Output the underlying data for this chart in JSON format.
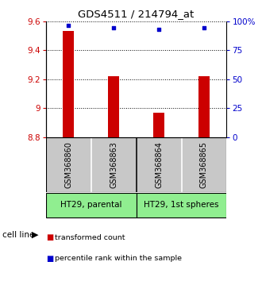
{
  "title": "GDS4511 / 214794_at",
  "samples": [
    "GSM368860",
    "GSM368863",
    "GSM368864",
    "GSM368865"
  ],
  "bar_values": [
    9.53,
    9.22,
    8.97,
    9.22
  ],
  "bar_bottom": 8.8,
  "percentile_values": [
    96,
    94,
    93,
    94
  ],
  "ylim_left": [
    8.8,
    9.6
  ],
  "ylim_right": [
    0,
    100
  ],
  "yticks_left": [
    8.8,
    9.0,
    9.2,
    9.4,
    9.6
  ],
  "ytick_labels_left": [
    "8.8",
    "9",
    "9.2",
    "9.4",
    "9.6"
  ],
  "yticks_right": [
    0,
    25,
    50,
    75,
    100
  ],
  "ytick_labels_right": [
    "0",
    "25",
    "50",
    "75",
    "100%"
  ],
  "bar_color": "#cc0000",
  "percentile_color": "#0000cc",
  "cell_line_groups": [
    {
      "label": "HT29, parental",
      "indices": [
        0,
        1
      ],
      "color": "#90ee90"
    },
    {
      "label": "HT29, 1st spheres",
      "indices": [
        2,
        3
      ],
      "color": "#90ee90"
    }
  ],
  "cell_line_label": "cell line",
  "legend_items": [
    {
      "label": "transformed count",
      "color": "#cc0000"
    },
    {
      "label": "percentile rank within the sample",
      "color": "#0000cc"
    }
  ],
  "background_color": "#ffffff",
  "plot_bg_color": "#ffffff",
  "sample_box_color": "#c8c8c8"
}
